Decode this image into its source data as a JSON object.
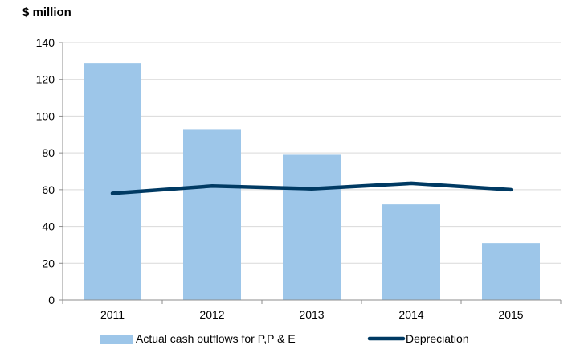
{
  "chart_data": {
    "type": "bar",
    "title": "",
    "ylabel": "$ million",
    "xlabel": "",
    "categories": [
      "2011",
      "2012",
      "2013",
      "2014",
      "2015"
    ],
    "ylim": [
      0,
      140
    ],
    "yticks": [
      0,
      20,
      40,
      60,
      80,
      100,
      120,
      140
    ],
    "grid": true,
    "legend_position": "bottom",
    "series": [
      {
        "name": "Actual cash outflows for P,P & E",
        "type": "bar",
        "color": "#9DC6E9",
        "values": [
          129,
          93,
          79,
          52,
          31
        ]
      },
      {
        "name": "Depreciation",
        "type": "line",
        "color": "#003A63",
        "values": [
          58,
          62,
          60.5,
          63.5,
          60
        ]
      }
    ]
  }
}
